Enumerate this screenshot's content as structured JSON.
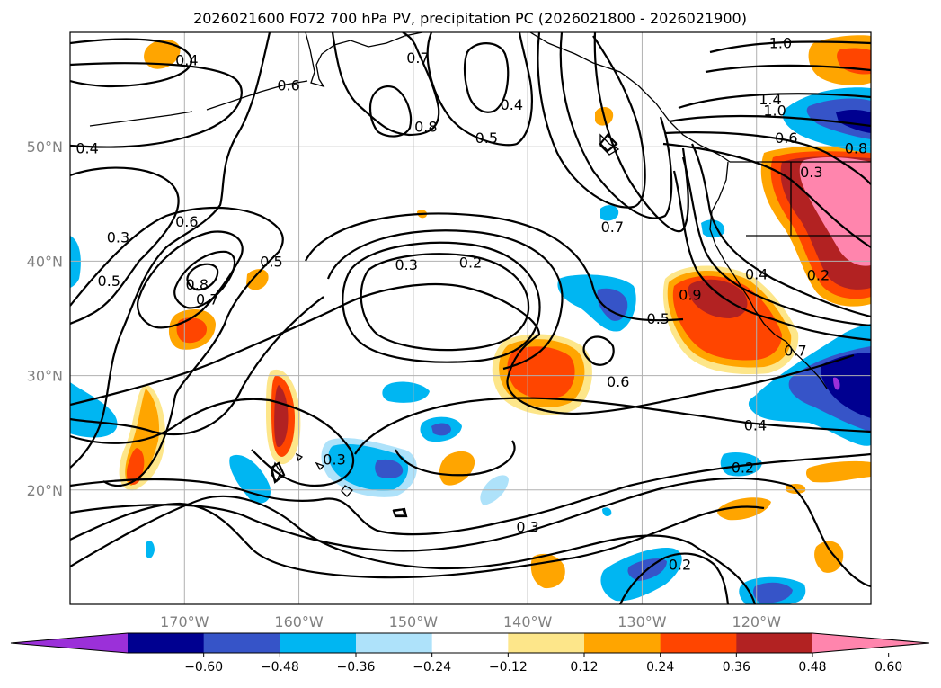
{
  "chart_data": {
    "type": "contour map",
    "title": "2026021600 F072 700 hPa PV, precipitation PC (2026021800 - 2026021900)",
    "lon_range": [
      -180,
      -110
    ],
    "lat_range": [
      10,
      60
    ],
    "x_ticks": [
      {
        "lon": -170,
        "label": "170°W"
      },
      {
        "lon": -160,
        "label": "160°W"
      },
      {
        "lon": -150,
        "label": "150°W"
      },
      {
        "lon": -140,
        "label": "140°W"
      },
      {
        "lon": -130,
        "label": "130°W"
      },
      {
        "lon": -120,
        "label": "120°W"
      }
    ],
    "y_ticks": [
      {
        "lat": 20,
        "label": "20°N"
      },
      {
        "lat": 30,
        "label": "30°N"
      },
      {
        "lat": 40,
        "label": "40°N"
      },
      {
        "lat": 50,
        "label": "50°N"
      }
    ],
    "colorbar": {
      "levels": [
        -0.72,
        -0.6,
        -0.48,
        -0.36,
        -0.24,
        -0.12,
        0.12,
        0.24,
        0.36,
        0.48,
        0.6,
        0.72
      ],
      "tick_labels": [
        "−0.60",
        "−0.48",
        "−0.36",
        "−0.24",
        "−0.12",
        "0.12",
        "0.24",
        "0.36",
        "0.48",
        "0.60"
      ],
      "colors": [
        "#9b30d9",
        "#000090",
        "#3654c8",
        "#00b6f2",
        "#aee2fa",
        "#ffffff",
        "#fde68a",
        "#ffa500",
        "#ff4500",
        "#b22222",
        "#ff85ad"
      ],
      "extend": "both"
    },
    "contour_labels": [
      {
        "text": "0.4",
        "lon": -169.8,
        "lat": 57.6
      },
      {
        "text": "0.6",
        "lon": -160.9,
        "lat": 55.4
      },
      {
        "text": "0.7",
        "lon": -149.6,
        "lat": 57.8
      },
      {
        "text": "0.8",
        "lon": -148.9,
        "lat": 51.8
      },
      {
        "text": "0.4",
        "lon": -141.4,
        "lat": 53.7
      },
      {
        "text": "0.5",
        "lon": -143.6,
        "lat": 50.8
      },
      {
        "text": "1.0",
        "lon": -117.9,
        "lat": 59.1
      },
      {
        "text": "1.4",
        "lon": -118.8,
        "lat": 54.2
      },
      {
        "text": "1.0",
        "lon": -118.4,
        "lat": 53.2
      },
      {
        "text": "0.6",
        "lon": -117.4,
        "lat": 50.8
      },
      {
        "text": "0.8",
        "lon": -111.3,
        "lat": 49.9
      },
      {
        "text": "0.4",
        "lon": -178.5,
        "lat": 49.9
      },
      {
        "text": "0.3",
        "lon": -175.8,
        "lat": 42.1
      },
      {
        "text": "0.6",
        "lon": -169.8,
        "lat": 43.5
      },
      {
        "text": "0.5",
        "lon": -176.6,
        "lat": 38.3
      },
      {
        "text": "0.8",
        "lon": -168.9,
        "lat": 38.0
      },
      {
        "text": "0.7",
        "lon": -168.0,
        "lat": 36.7
      },
      {
        "text": "0.5",
        "lon": -162.4,
        "lat": 40.0
      },
      {
        "text": "0.3",
        "lon": -150.6,
        "lat": 39.7
      },
      {
        "text": "0.2",
        "lon": -145.0,
        "lat": 39.9
      },
      {
        "text": "0.7",
        "lon": -132.6,
        "lat": 43.0
      },
      {
        "text": "0.9",
        "lon": -125.8,
        "lat": 37.1
      },
      {
        "text": "0.3",
        "lon": -115.2,
        "lat": 47.8
      },
      {
        "text": "0.4",
        "lon": -120.0,
        "lat": 38.9
      },
      {
        "text": "0.2",
        "lon": -114.6,
        "lat": 38.8
      },
      {
        "text": "0.5",
        "lon": -128.6,
        "lat": 35.0
      },
      {
        "text": "0.7",
        "lon": -116.6,
        "lat": 32.2
      },
      {
        "text": "0.6",
        "lon": -132.1,
        "lat": 29.5
      },
      {
        "text": "0.4",
        "lon": -120.1,
        "lat": 25.7
      },
      {
        "text": "0.2",
        "lon": -121.2,
        "lat": 22.0
      },
      {
        "text": "0.3",
        "lon": -156.9,
        "lat": 22.7
      },
      {
        "text": "0.3",
        "lon": -140.0,
        "lat": 16.8
      },
      {
        "text": "0.2",
        "lon": -126.7,
        "lat": 13.5
      }
    ]
  }
}
